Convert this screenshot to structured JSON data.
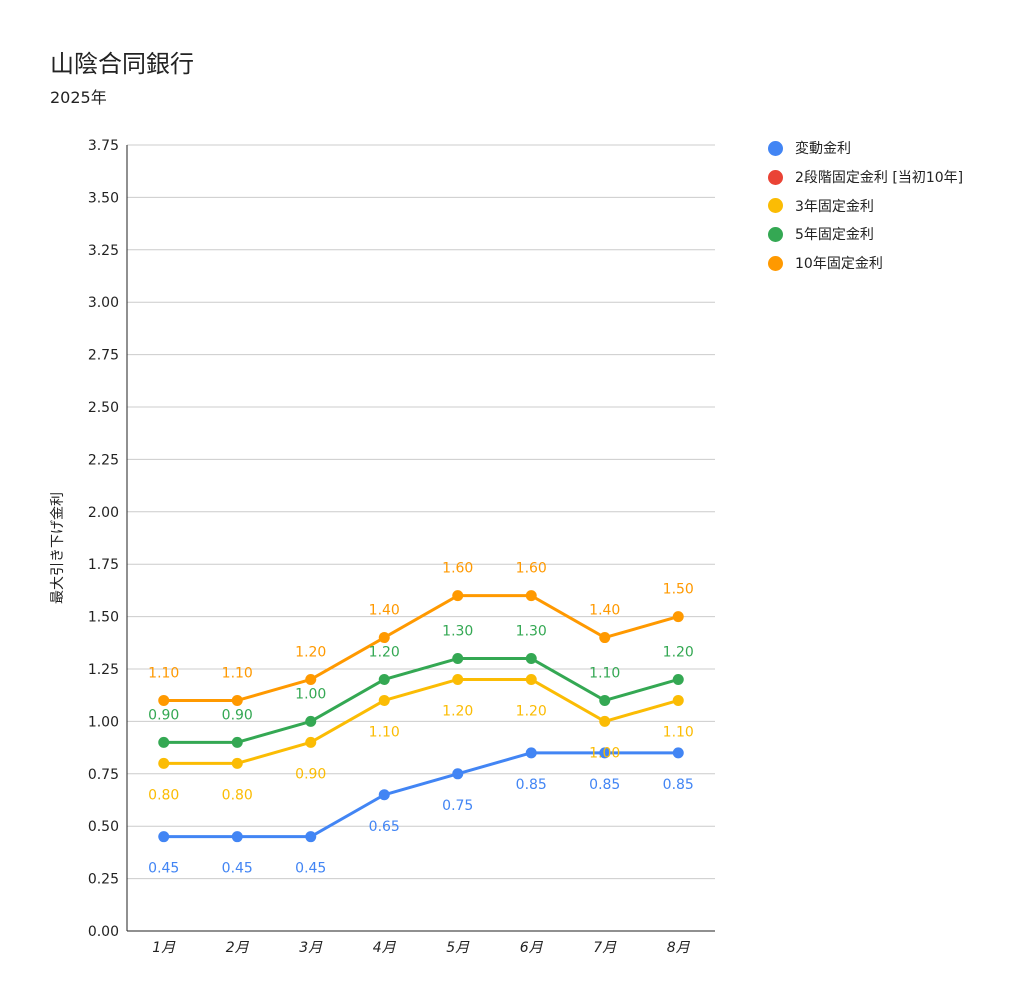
{
  "chart_data": {
    "type": "line",
    "title": "山陰合同銀行",
    "subtitle": "2025年",
    "xlabel": "",
    "ylabel": "最大引き下げ金利",
    "ylim": [
      0,
      3.75
    ],
    "yticks": [
      "0.00",
      "0.25",
      "0.50",
      "0.75",
      "1.00",
      "1.25",
      "1.50",
      "1.75",
      "2.00",
      "2.25",
      "2.50",
      "2.75",
      "3.00",
      "3.25",
      "3.50",
      "3.75"
    ],
    "categories": [
      "1月",
      "2月",
      "3月",
      "4月",
      "5月",
      "6月",
      "7月",
      "8月"
    ],
    "legend_position": "right",
    "grid": true,
    "series": [
      {
        "name": "変動金利",
        "color": "#4285f4",
        "values": [
          0.45,
          0.45,
          0.45,
          0.65,
          0.75,
          0.85,
          0.85,
          0.85
        ],
        "label_pos": "below",
        "labels": [
          "0.45",
          "0.45",
          "0.45",
          "0.65",
          "0.75",
          "0.85",
          "0.85",
          "0.85"
        ]
      },
      {
        "name": "2段階固定金利 [当初10年]",
        "color": "#ea4335",
        "values": [
          null,
          null,
          null,
          null,
          null,
          null,
          null,
          null
        ],
        "label_pos": "above",
        "labels": []
      },
      {
        "name": "3年固定金利",
        "color": "#fbbc04",
        "values": [
          0.8,
          0.8,
          0.9,
          1.1,
          1.2,
          1.2,
          1.0,
          1.1
        ],
        "label_pos": "below",
        "labels": [
          "0.80",
          "0.80",
          "0.90",
          "1.10",
          "1.20",
          "1.20",
          "1.00",
          "1.10"
        ]
      },
      {
        "name": "5年固定金利",
        "color": "#34a853",
        "values": [
          0.9,
          0.9,
          1.0,
          1.2,
          1.3,
          1.3,
          1.1,
          1.2
        ],
        "label_pos": "above",
        "labels": [
          "0.90",
          "0.90",
          "1.00",
          "1.20",
          "1.30",
          "1.30",
          "1.10",
          "1.20"
        ]
      },
      {
        "name": "10年固定金利",
        "color": "#ff9900",
        "values": [
          1.1,
          1.1,
          1.2,
          1.4,
          1.6,
          1.6,
          1.4,
          1.5
        ],
        "label_pos": "above",
        "labels": [
          "1.10",
          "1.10",
          "1.20",
          "1.40",
          "1.60",
          "1.60",
          "1.40",
          "1.50"
        ]
      }
    ]
  }
}
